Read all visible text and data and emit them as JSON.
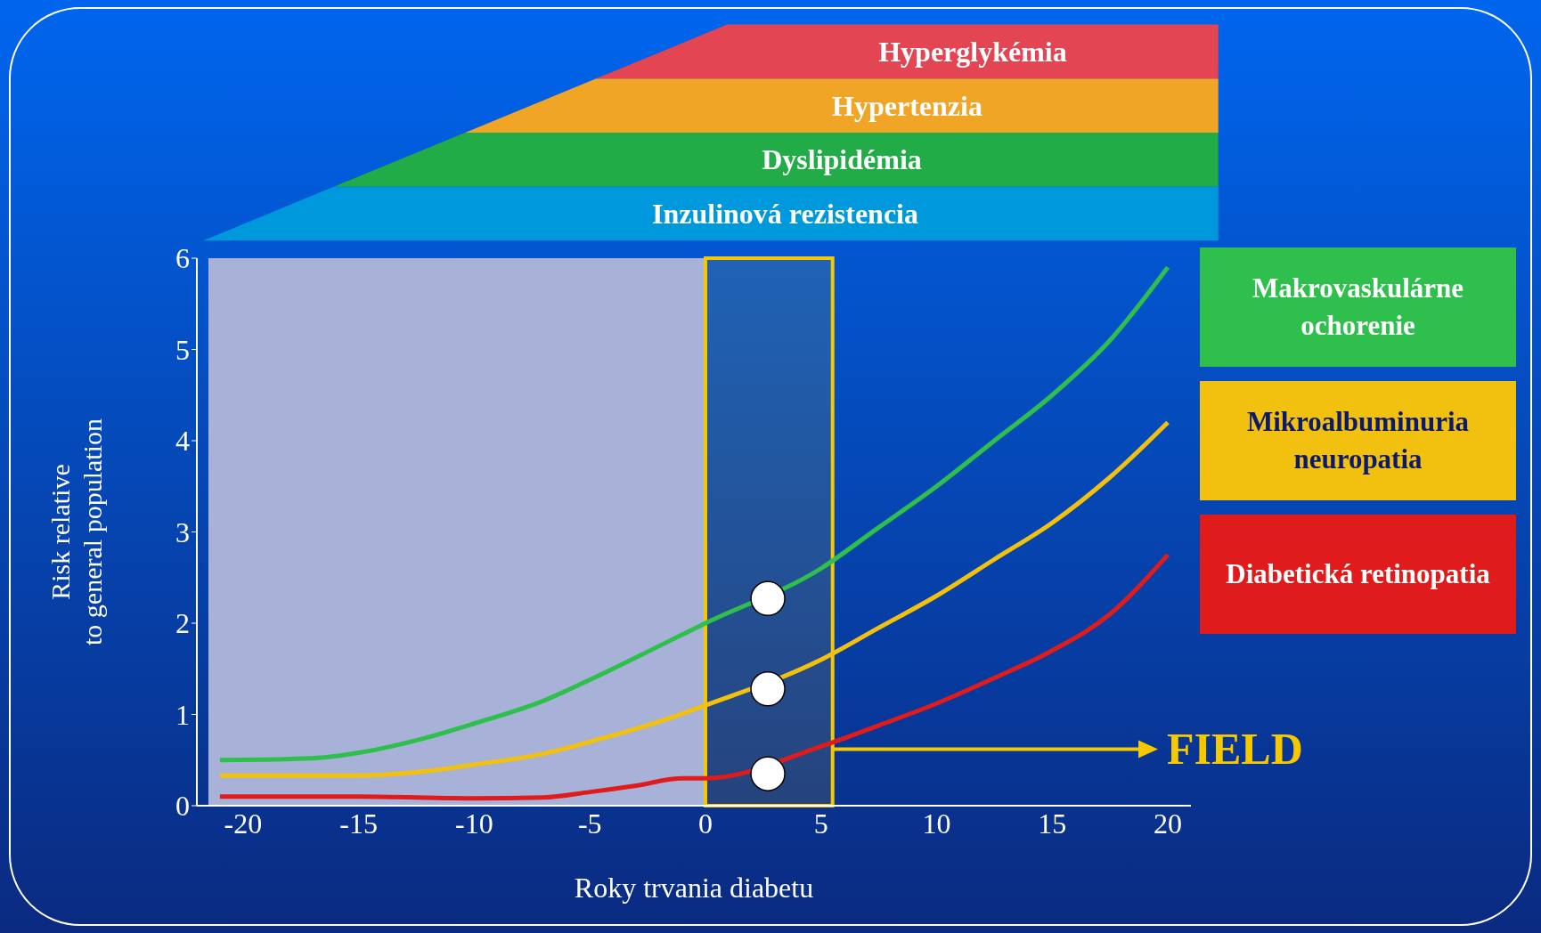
{
  "chart_data": {
    "type": "line",
    "xlabel": "Roky trvania diabetu",
    "ylabel": "Risk relative\nto general population",
    "xlim": [
      -22,
      21
    ],
    "xticks": [
      -20,
      -15,
      -10,
      -5,
      0,
      5,
      10,
      15,
      20
    ],
    "ylim": [
      0,
      6
    ],
    "yticks": [
      0,
      1,
      2,
      3,
      4,
      5,
      6
    ],
    "grid": false,
    "legend": "right",
    "marker": "none",
    "line_style": "solid",
    "series": [
      {
        "name": "Makrovaskulárne ochorenie",
        "color": "#2fbf4c",
        "x": [
          -21,
          -17,
          -15,
          -12,
          -10,
          -7,
          -5,
          -2,
          0,
          2.7,
          5,
          7.5,
          10,
          12.5,
          15,
          17.5,
          20
        ],
        "values": [
          0.5,
          0.52,
          0.58,
          0.75,
          0.9,
          1.15,
          1.38,
          1.75,
          2.0,
          null,
          2.6,
          3.05,
          3.5,
          4.0,
          4.5,
          5.1,
          5.9
        ]
      },
      {
        "name": "Mikroalbuminuria neuropatia",
        "color": "#f2c10f",
        "x": [
          -21,
          -15,
          -12,
          -10,
          -7,
          -5,
          -2,
          0,
          2.7,
          5,
          7.5,
          10,
          12.5,
          15,
          17.5,
          20
        ],
        "values": [
          0.33,
          0.33,
          0.38,
          0.45,
          0.57,
          0.7,
          0.92,
          1.1,
          null,
          1.6,
          1.95,
          2.3,
          2.7,
          3.1,
          3.6,
          4.2
        ]
      },
      {
        "name": "Diabetická retinopatia",
        "color": "#e01b1b",
        "x": [
          -21,
          -15,
          -10,
          -7,
          -5,
          -3,
          -1,
          0,
          2.7,
          5,
          7.5,
          10,
          12.5,
          15,
          17.5,
          20
        ],
        "values": [
          0.1,
          0.1,
          0.08,
          0.09,
          0.15,
          0.22,
          0.3,
          0.3,
          null,
          0.65,
          0.88,
          1.12,
          1.4,
          1.7,
          2.1,
          2.75
        ]
      },
      {
        "type": "scatter",
        "color": "#ffffff",
        "marker": "circle",
        "x": [
          2.7,
          2.7,
          2.7
        ],
        "values": [
          2.27,
          1.28,
          0.35
        ]
      }
    ],
    "bands": [
      {
        "axis": "x",
        "from": -21.5,
        "to": 0,
        "color": "#a8b2d8"
      },
      {
        "axis": "x",
        "from": 0,
        "to": 5.5,
        "label": "FIELD",
        "color": "#f5c800"
      }
    ],
    "annotations": [
      "Inzulinová rezistencia",
      "Dyslipidémia",
      "Hypertenzia",
      "Hyperglykémia"
    ]
  }
}
